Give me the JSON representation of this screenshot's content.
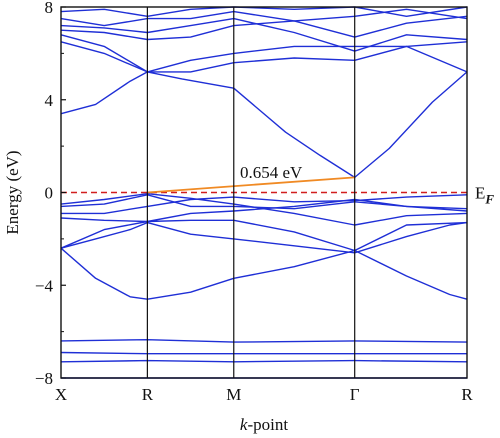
{
  "chart_data": {
    "type": "line",
    "xlabel_prefix": "k",
    "xlabel_suffix": "-point",
    "ylabel": "Energy (eV)",
    "ylim": [
      -8,
      8
    ],
    "yticks": [
      -8,
      -4,
      0,
      4,
      8
    ],
    "ytick_labels": [
      "−8",
      "−4",
      "0",
      "4",
      "8"
    ],
    "kpoint_labels": [
      "X",
      "R",
      "M",
      "Γ",
      "R"
    ],
    "kpoint_positions": [
      0,
      1,
      2,
      3.4,
      4.7
    ],
    "xlim": [
      0,
      4.7
    ],
    "fermi_level": 0,
    "fermi_label_main": "E",
    "fermi_label_sub": "F",
    "gap": {
      "label": "0.654 eV",
      "from": [
        1,
        0
      ],
      "to": [
        3.4,
        0.654
      ]
    },
    "colors": {
      "bands": "#1f2fd6",
      "fermi": "#d11f1f",
      "gap": "#f08a24",
      "frame": "#111111"
    },
    "series": [
      {
        "values": [
          [
            0,
            -8.0
          ],
          [
            1,
            -8.0
          ],
          [
            2,
            -8.0
          ],
          [
            3.4,
            -8.0
          ],
          [
            4.7,
            -8.0
          ]
        ]
      },
      {
        "values": [
          [
            0,
            -7.3
          ],
          [
            1,
            -7.25
          ],
          [
            2,
            -7.3
          ],
          [
            3.4,
            -7.25
          ],
          [
            4.7,
            -7.3
          ]
        ]
      },
      {
        "values": [
          [
            0,
            -6.9
          ],
          [
            1,
            -6.95
          ],
          [
            2,
            -6.95
          ],
          [
            3.4,
            -6.95
          ],
          [
            4.7,
            -6.95
          ]
        ]
      },
      {
        "values": [
          [
            0,
            -6.4
          ],
          [
            1,
            -6.35
          ],
          [
            2,
            -6.45
          ],
          [
            3.4,
            -6.4
          ],
          [
            4.7,
            -6.45
          ]
        ]
      },
      {
        "values": [
          [
            0,
            -2.4
          ],
          [
            0.4,
            -3.7
          ],
          [
            0.8,
            -4.5
          ],
          [
            1,
            -4.6
          ],
          [
            1.5,
            -4.3
          ],
          [
            2,
            -3.7
          ],
          [
            2.7,
            -3.2
          ],
          [
            3.4,
            -2.5
          ],
          [
            4.0,
            -3.6
          ],
          [
            4.5,
            -4.4
          ],
          [
            4.7,
            -4.6
          ]
        ]
      },
      {
        "values": [
          [
            0,
            -2.4
          ],
          [
            0.4,
            -2.0
          ],
          [
            0.8,
            -1.6
          ],
          [
            1,
            -1.3
          ],
          [
            1.5,
            -1.8
          ],
          [
            2,
            -2.0
          ],
          [
            2.7,
            -2.3
          ],
          [
            3.4,
            -2.6
          ],
          [
            4.0,
            -1.9
          ],
          [
            4.5,
            -1.4
          ],
          [
            4.7,
            -1.3
          ]
        ]
      },
      {
        "values": [
          [
            0,
            -2.4
          ],
          [
            0.5,
            -1.6
          ],
          [
            1,
            -1.25
          ],
          [
            1.5,
            -1.2
          ],
          [
            2,
            -1.2
          ],
          [
            2.7,
            -1.7
          ],
          [
            3.4,
            -2.5
          ],
          [
            4.0,
            -1.4
          ],
          [
            4.7,
            -1.3
          ]
        ]
      },
      {
        "values": [
          [
            0,
            -1.1
          ],
          [
            0.5,
            -1.2
          ],
          [
            1,
            -1.25
          ],
          [
            1.5,
            -0.9
          ],
          [
            2,
            -0.8
          ],
          [
            2.7,
            -0.6
          ],
          [
            3.4,
            -0.3
          ],
          [
            4.0,
            -0.6
          ],
          [
            4.7,
            -0.7
          ]
        ]
      },
      {
        "values": [
          [
            0,
            -0.9
          ],
          [
            0.5,
            -0.9
          ],
          [
            1,
            -0.6
          ],
          [
            1.5,
            -0.3
          ],
          [
            2,
            -0.2
          ],
          [
            2.7,
            -0.4
          ],
          [
            3.4,
            -0.35
          ],
          [
            4.0,
            -0.2
          ],
          [
            4.7,
            -0.1
          ]
        ]
      },
      {
        "values": [
          [
            0,
            -0.6
          ],
          [
            0.5,
            -0.5
          ],
          [
            1,
            -0.1
          ],
          [
            1.5,
            -0.6
          ],
          [
            2,
            -0.6
          ],
          [
            2.7,
            -0.7
          ],
          [
            3.4,
            -0.4
          ],
          [
            4.0,
            -0.6
          ],
          [
            4.7,
            -0.8
          ]
        ]
      },
      {
        "values": [
          [
            0,
            -0.5
          ],
          [
            0.5,
            -0.3
          ],
          [
            1,
            -0.05
          ],
          [
            1.5,
            -0.25
          ],
          [
            2,
            -0.5
          ],
          [
            2.7,
            -0.9
          ],
          [
            3.4,
            -1.4
          ],
          [
            4.0,
            -1.0
          ],
          [
            4.7,
            -0.9
          ]
        ]
      },
      {
        "values": [
          [
            0,
            3.4
          ],
          [
            0.4,
            3.8
          ],
          [
            0.8,
            4.8
          ],
          [
            1,
            5.2
          ],
          [
            1.4,
            4.9
          ],
          [
            2,
            4.5
          ],
          [
            2.6,
            2.6
          ],
          [
            3.0,
            1.6
          ],
          [
            3.4,
            0.65
          ],
          [
            3.8,
            1.9
          ],
          [
            4.3,
            3.9
          ],
          [
            4.7,
            5.2
          ]
        ]
      },
      {
        "values": [
          [
            0,
            6.5
          ],
          [
            0.5,
            6.0
          ],
          [
            1,
            5.2
          ],
          [
            1.5,
            5.2
          ],
          [
            2,
            5.6
          ],
          [
            2.7,
            5.8
          ],
          [
            3.4,
            5.7
          ],
          [
            4.0,
            6.3
          ],
          [
            4.7,
            6.5
          ]
        ]
      },
      {
        "values": [
          [
            0,
            6.8
          ],
          [
            0.5,
            6.3
          ],
          [
            1,
            5.2
          ],
          [
            1.5,
            5.7
          ],
          [
            2,
            6.0
          ],
          [
            2.7,
            6.3
          ],
          [
            3.4,
            6.3
          ],
          [
            4.0,
            6.3
          ],
          [
            4.7,
            5.2
          ]
        ]
      },
      {
        "values": [
          [
            0,
            7.0
          ],
          [
            0.5,
            6.9
          ],
          [
            1,
            6.6
          ],
          [
            1.5,
            6.7
          ],
          [
            2,
            7.2
          ],
          [
            2.7,
            7.4
          ],
          [
            3.4,
            6.7
          ],
          [
            4.0,
            7.3
          ],
          [
            4.7,
            7.6
          ]
        ]
      },
      {
        "values": [
          [
            0,
            7.2
          ],
          [
            0.5,
            7.1
          ],
          [
            1,
            6.9
          ],
          [
            1.5,
            7.2
          ],
          [
            2,
            7.5
          ],
          [
            2.7,
            6.9
          ],
          [
            3.4,
            6.1
          ],
          [
            4.0,
            6.8
          ],
          [
            4.7,
            6.6
          ]
        ]
      },
      {
        "values": [
          [
            0,
            7.5
          ],
          [
            0.5,
            7.2
          ],
          [
            1,
            7.5
          ],
          [
            1.5,
            7.5
          ],
          [
            2,
            7.8
          ],
          [
            2.7,
            7.4
          ],
          [
            3.4,
            7.6
          ],
          [
            4.0,
            7.9
          ],
          [
            4.7,
            7.5
          ]
        ]
      },
      {
        "values": [
          [
            0,
            7.8
          ],
          [
            0.5,
            7.9
          ],
          [
            1,
            7.6
          ],
          [
            1.5,
            7.9
          ],
          [
            2,
            8.0
          ],
          [
            2.7,
            7.9
          ],
          [
            3.4,
            8.0
          ],
          [
            4.0,
            7.6
          ],
          [
            4.7,
            8.0
          ]
        ]
      }
    ]
  }
}
